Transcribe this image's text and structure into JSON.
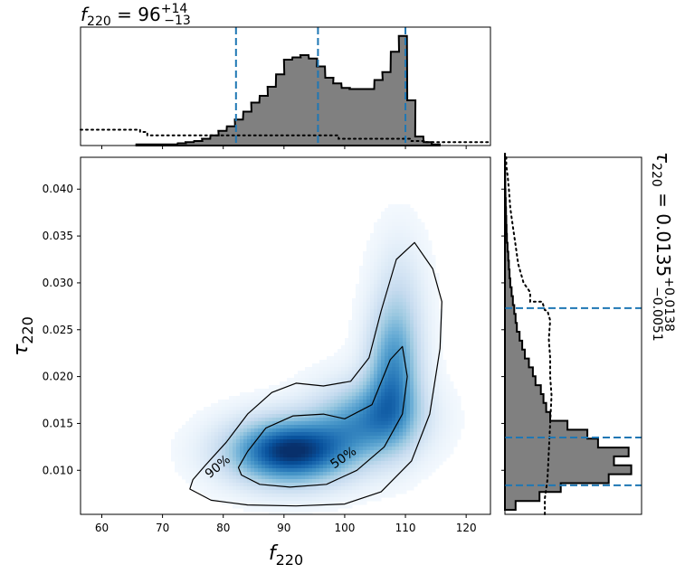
{
  "chart_data": [
    {
      "type": "area",
      "panel": "f220-marginal",
      "title": {
        "symbol": "f",
        "sub": "220",
        "value": "96",
        "plus": "+14",
        "minus": "−13"
      },
      "xlim": [
        56.5,
        124
      ],
      "bin_width": 1.35,
      "histogram": {
        "bins": [
          [
            65.7,
            0.01
          ],
          [
            67.1,
            0.01
          ],
          [
            68.4,
            0.01
          ],
          [
            69.8,
            0.01
          ],
          [
            71.1,
            0.01
          ],
          [
            72.5,
            0.02
          ],
          [
            73.8,
            0.03
          ],
          [
            75.2,
            0.04
          ],
          [
            76.5,
            0.06
          ],
          [
            77.9,
            0.09
          ],
          [
            79.2,
            0.13
          ],
          [
            80.6,
            0.17
          ],
          [
            81.9,
            0.23
          ],
          [
            83.3,
            0.3
          ],
          [
            84.6,
            0.38
          ],
          [
            86.0,
            0.44
          ],
          [
            87.3,
            0.52
          ],
          [
            88.7,
            0.63
          ],
          [
            90.0,
            0.76
          ],
          [
            91.4,
            0.78
          ],
          [
            92.7,
            0.8
          ],
          [
            94.1,
            0.77
          ],
          [
            95.4,
            0.7
          ],
          [
            96.8,
            0.6
          ],
          [
            98.1,
            0.55
          ],
          [
            99.5,
            0.51
          ],
          [
            100.8,
            0.5
          ],
          [
            102.2,
            0.5
          ],
          [
            103.5,
            0.5
          ],
          [
            104.9,
            0.58
          ],
          [
            106.2,
            0.65
          ],
          [
            107.6,
            0.83
          ],
          [
            108.9,
            0.97
          ],
          [
            110.3,
            0.4
          ],
          [
            111.6,
            0.08
          ],
          [
            113.0,
            0.03
          ],
          [
            114.3,
            0.01
          ]
        ],
        "fill": "#808080"
      },
      "prior": {
        "x": [
          56.5,
          66.3,
          66.3,
          67.5,
          67.5,
          99,
          99,
          111,
          111,
          113.5,
          113.5,
          124
        ],
        "y": [
          0.14,
          0.14,
          0.12,
          0.12,
          0.09,
          0.09,
          0.06,
          0.06,
          0.04,
          0.04,
          0.03,
          0.03
        ]
      },
      "quantile_lines": [
        82.1,
        95.6,
        110.0
      ],
      "line_color": "#1f77b4"
    },
    {
      "type": "heatmap",
      "panel": "joint",
      "xlabel": {
        "symbol": "f",
        "sub": "220"
      },
      "ylabel": {
        "symbol": "τ",
        "sub": "220"
      },
      "xlim": [
        56.5,
        124
      ],
      "ylim": [
        0.0053,
        0.0434
      ],
      "xticks": [
        60,
        70,
        80,
        90,
        100,
        110,
        120
      ],
      "yticks": [
        0.01,
        0.015,
        0.02,
        0.025,
        0.03,
        0.035,
        0.04
      ],
      "ytick_labels": [
        "0.010",
        "0.015",
        "0.020",
        "0.025",
        "0.030",
        "0.035",
        "0.040"
      ],
      "colormap": "Blues",
      "contours": [
        {
          "level": "90%",
          "points": [
            [
              74.5,
              0.008
            ],
            [
              78.0,
              0.0068
            ],
            [
              84.0,
              0.0063
            ],
            [
              92.0,
              0.0062
            ],
            [
              100.0,
              0.0064
            ],
            [
              106.0,
              0.0077
            ],
            [
              111.0,
              0.011
            ],
            [
              114.0,
              0.016
            ],
            [
              115.7,
              0.023
            ],
            [
              116.0,
              0.028
            ],
            [
              114.5,
              0.0315
            ],
            [
              111.5,
              0.0343
            ],
            [
              108.5,
              0.0325
            ],
            [
              106.0,
              0.027
            ],
            [
              104.0,
              0.022
            ],
            [
              101.0,
              0.0195
            ],
            [
              96.5,
              0.019
            ],
            [
              92.0,
              0.0193
            ],
            [
              88.0,
              0.0183
            ],
            [
              84.0,
              0.016
            ],
            [
              80.5,
              0.013
            ],
            [
              77.0,
              0.0105
            ],
            [
              75.0,
              0.009
            ]
          ]
        },
        {
          "level": "50%",
          "points": [
            [
              83.0,
              0.0095
            ],
            [
              86.0,
              0.0085
            ],
            [
              91.0,
              0.0082
            ],
            [
              97.0,
              0.0085
            ],
            [
              102.0,
              0.01
            ],
            [
              106.5,
              0.0125
            ],
            [
              109.5,
              0.016
            ],
            [
              110.3,
              0.02
            ],
            [
              109.5,
              0.0232
            ],
            [
              107.5,
              0.0218
            ],
            [
              104.5,
              0.017
            ],
            [
              100.0,
              0.0155
            ],
            [
              96.5,
              0.016
            ],
            [
              91.5,
              0.0158
            ],
            [
              87.0,
              0.0145
            ],
            [
              84.0,
              0.012
            ],
            [
              82.5,
              0.0103
            ]
          ]
        }
      ]
    },
    {
      "type": "area",
      "panel": "tau220-marginal",
      "title": {
        "symbol": "τ",
        "sub": "220",
        "value": "0.0135",
        "plus": "+0.0138",
        "minus": "−0.0051"
      },
      "ylim": [
        0.0053,
        0.0434
      ],
      "bin_width": 0.00095,
      "histogram": {
        "bins": [
          [
            0.00578,
            0.08
          ],
          [
            0.00673,
            0.26
          ],
          [
            0.00768,
            0.42
          ],
          [
            0.00863,
            0.78
          ],
          [
            0.00958,
            0.95
          ],
          [
            0.01053,
            0.82
          ],
          [
            0.01148,
            0.93
          ],
          [
            0.01243,
            0.7
          ],
          [
            0.01338,
            0.62
          ],
          [
            0.01433,
            0.47
          ],
          [
            0.01528,
            0.34
          ],
          [
            0.01623,
            0.31
          ],
          [
            0.01718,
            0.29
          ],
          [
            0.01813,
            0.27
          ],
          [
            0.01908,
            0.23
          ],
          [
            0.02003,
            0.21
          ],
          [
            0.02098,
            0.18
          ],
          [
            0.02193,
            0.15
          ],
          [
            0.02288,
            0.13
          ],
          [
            0.02383,
            0.11
          ],
          [
            0.02478,
            0.09
          ],
          [
            0.02573,
            0.08
          ],
          [
            0.02668,
            0.07
          ],
          [
            0.02763,
            0.06
          ],
          [
            0.02858,
            0.05
          ],
          [
            0.02953,
            0.04
          ],
          [
            0.03048,
            0.035
          ],
          [
            0.03143,
            0.03
          ],
          [
            0.03238,
            0.025
          ],
          [
            0.03333,
            0.02
          ],
          [
            0.03428,
            0.015
          ],
          [
            0.03523,
            0.012
          ],
          [
            0.03618,
            0.01
          ],
          [
            0.03713,
            0.008
          ],
          [
            0.03808,
            0.006
          ],
          [
            0.03903,
            0.004
          ],
          [
            0.03998,
            0.003
          ],
          [
            0.04093,
            0.002
          ],
          [
            0.04188,
            0.001
          ],
          [
            0.04283,
            0.001
          ]
        ],
        "fill": "#808080"
      },
      "prior": {
        "x": [
          0.3,
          0.3,
          0.32,
          0.33,
          0.34,
          0.35,
          0.34,
          0.34,
          0.33,
          0.34,
          0.32,
          0.3,
          0.28,
          0.19,
          0.19,
          0.14,
          0.1,
          0.08,
          0.06,
          0.04,
          0.03,
          0.02,
          0.01,
          0.01
        ],
        "y": [
          0.0053,
          0.007,
          0.009,
          0.012,
          0.015,
          0.018,
          0.02,
          0.022,
          0.024,
          0.026,
          0.027,
          0.0271,
          0.028,
          0.028,
          0.029,
          0.03,
          0.032,
          0.034,
          0.036,
          0.038,
          0.04,
          0.0415,
          0.0425,
          0.0434
        ]
      },
      "quantile_lines": [
        0.0084,
        0.0135,
        0.0273
      ],
      "line_color": "#1f77b4"
    }
  ]
}
